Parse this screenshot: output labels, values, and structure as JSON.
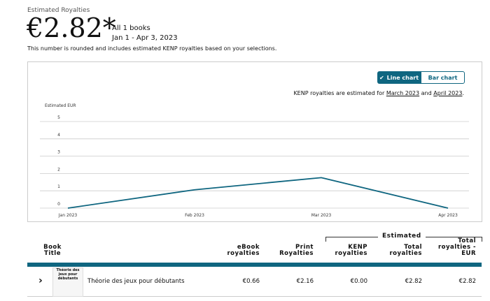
{
  "header": {
    "label": "Estimated Royalties",
    "amount": "€2.82*",
    "books": "All 1 books",
    "date_range": "Jan 1 - Apr 3, 2023",
    "note": "This number is rounded and includes estimated KENP royalties based on your selections."
  },
  "chart_panel": {
    "toggle": [
      "Line chart",
      "Bar chart"
    ],
    "kenp_note": {
      "prefix": "KENP royalties are estimated for",
      "link1": "March 2023",
      "middle": "and",
      "link2": "April 2023",
      "suffix": "."
    }
  },
  "chart_data": {
    "type": "line",
    "y_label": "Estimated EUR",
    "categories": [
      "Jan 2023",
      "Feb 2023",
      "Mar 2023",
      "Apr 2023"
    ],
    "values": [
      0,
      1.06,
      1.76,
      0
    ],
    "color": "#0f6680",
    "ylim": [
      0,
      5
    ],
    "yticks": [
      0,
      1,
      2,
      3,
      4,
      5
    ],
    "grid": true
  },
  "table": {
    "group_header": "Estimated",
    "columns": [
      "Book Title",
      "eBook royalties",
      "Print Royalties",
      "KENP royalties",
      "Total royalties",
      "Total royalties - EUR"
    ],
    "rows": [
      {
        "cover_text": "Théorie des jeux pour débutants",
        "title": "Théorie des jeux pour débutants",
        "values": [
          "€0.66",
          "€2.16",
          "€0.00",
          "€2.82",
          "€2.82"
        ]
      }
    ]
  }
}
